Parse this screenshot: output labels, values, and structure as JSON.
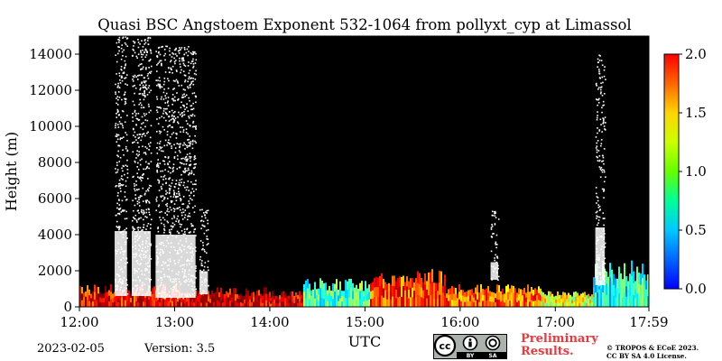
{
  "chart_data": {
    "type": "heatmap",
    "title": "Quasi BSC Angstoem Exponent 532-1064 from pollyxt_cyp at Limassol",
    "xlabel": "UTC",
    "ylabel": "Height (m)",
    "x_ticks": [
      "12:00",
      "13:00",
      "14:00",
      "15:00",
      "16:00",
      "17:00",
      "17:59"
    ],
    "x_range_hours": [
      12.0,
      17.9833
    ],
    "y_ticks": [
      0,
      2000,
      4000,
      6000,
      8000,
      10000,
      12000,
      14000
    ],
    "ylim": [
      0,
      15000
    ],
    "colorbar": {
      "ticks": [
        "0.0",
        "0.5",
        "1.0",
        "1.5",
        "2.0"
      ],
      "range": [
        0.0,
        2.0
      ],
      "colormap": "jet"
    },
    "no_signal_color": "#000000",
    "cloud_color": "#ffffff",
    "regions": [
      {
        "kind": "cloud",
        "t0": 12.37,
        "t1": 12.5,
        "h0": 600,
        "h1": 15000
      },
      {
        "kind": "cloud",
        "t0": 12.55,
        "t1": 12.75,
        "h0": 600,
        "h1": 15000
      },
      {
        "kind": "cloud",
        "t0": 12.8,
        "t1": 13.22,
        "h0": 500,
        "h1": 14500
      },
      {
        "kind": "cloud",
        "t0": 13.26,
        "t1": 13.35,
        "h0": 700,
        "h1": 5800
      },
      {
        "kind": "cloud",
        "t0": 16.32,
        "t1": 16.4,
        "h0": 1500,
        "h1": 5400
      },
      {
        "kind": "cloud",
        "t0": 17.42,
        "t1": 17.52,
        "h0": 1200,
        "h1": 14000
      },
      {
        "kind": "aerosol",
        "t0": 12.0,
        "t1": 13.1,
        "h0": 0,
        "h1": 1300,
        "value": 1.75
      },
      {
        "kind": "aerosol",
        "t0": 13.1,
        "t1": 14.0,
        "h0": 0,
        "h1": 1100,
        "value": 1.85
      },
      {
        "kind": "aerosol",
        "t0": 14.0,
        "t1": 14.35,
        "h0": 0,
        "h1": 900,
        "value": 1.8
      },
      {
        "kind": "aerosol",
        "t0": 14.35,
        "t1": 15.05,
        "h0": 0,
        "h1": 1600,
        "value": 0.9
      },
      {
        "kind": "aerosol",
        "t0": 15.05,
        "t1": 15.85,
        "h0": 0,
        "h1": 2100,
        "value": 1.6
      },
      {
        "kind": "aerosol",
        "t0": 15.85,
        "t1": 16.85,
        "h0": 0,
        "h1": 1300,
        "value": 1.55
      },
      {
        "kind": "aerosol",
        "t0": 16.85,
        "t1": 17.4,
        "h0": 0,
        "h1": 1000,
        "value": 1.2
      },
      {
        "kind": "aerosol",
        "t0": 17.4,
        "t1": 17.98,
        "h0": 0,
        "h1": 2600,
        "value": 0.8
      }
    ]
  },
  "footer": {
    "date": "2023-02-05",
    "version": "Version: 3.5",
    "preliminary_line1": "Preliminary",
    "preliminary_line2": "Results.",
    "copyright_line1": "© TROPOS & ECoE 2023.",
    "copyright_line2": "CC BY SA 4.0 License.",
    "license_badge": {
      "cc": "cc",
      "by": "BY",
      "sa": "SA"
    }
  }
}
